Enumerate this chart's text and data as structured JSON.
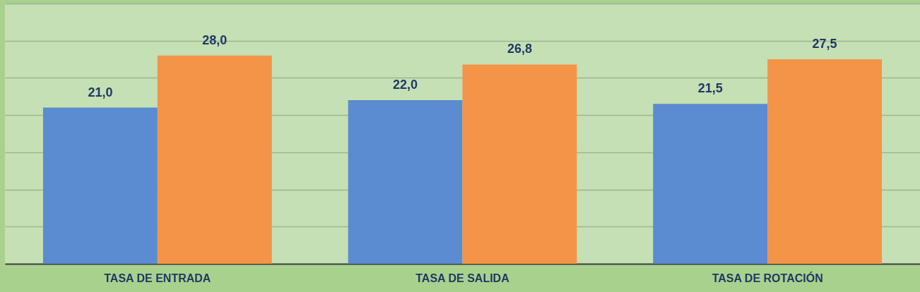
{
  "chart_data": {
    "type": "bar",
    "categories": [
      "TASA DE ENTRADA",
      "TASA DE SALIDA",
      "TASA DE ROTACIÓN"
    ],
    "series": [
      {
        "color": "#5b8bd0",
        "values": [
          21.0,
          22.0,
          21.5
        ],
        "value_labels": [
          "21,0",
          "22,0",
          "21,5"
        ]
      },
      {
        "color": "#f39449",
        "values": [
          28.0,
          26.8,
          27.5
        ],
        "value_labels": [
          "28,0",
          "26,8",
          "27,5"
        ]
      }
    ],
    "ylim": [
      0,
      35
    ],
    "yticks": [
      0,
      5,
      10,
      15,
      20,
      25,
      30,
      35
    ],
    "grid": "y",
    "tick_labels": "x"
  }
}
